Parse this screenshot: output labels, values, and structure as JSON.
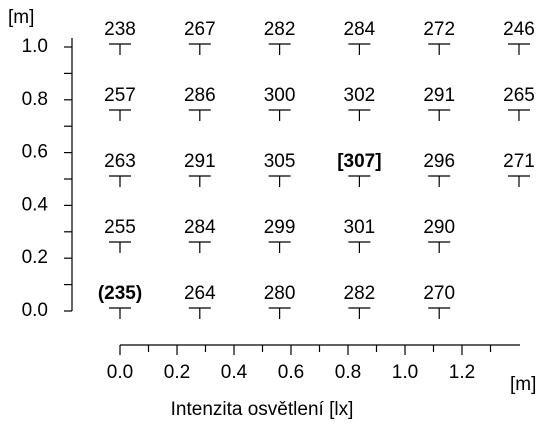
{
  "chart_data": {
    "type": "scatter",
    "y_unit": "[m]",
    "x_unit": "[m]",
    "x_label": "Intenzita osvětlení [lx]",
    "x": [
      0,
      0.28,
      0.56,
      0.84,
      1.12,
      1.4,
      0,
      0.28,
      0.56,
      0.84,
      1.12,
      1.4,
      0,
      0.28,
      0.56,
      0.84,
      1.12,
      1.4,
      0,
      0.28,
      0.56,
      0.84,
      1.12,
      0,
      0.28,
      0.56,
      0.84,
      1.12
    ],
    "y": [
      1,
      1,
      1,
      1,
      1,
      1,
      0.75,
      0.75,
      0.75,
      0.75,
      0.75,
      0.75,
      0.5,
      0.5,
      0.5,
      0.5,
      0.5,
      0.5,
      0.25,
      0.25,
      0.25,
      0.25,
      0.25,
      0,
      0,
      0,
      0,
      0
    ],
    "values": [
      238,
      267,
      282,
      284,
      272,
      246,
      257,
      286,
      300,
      302,
      291,
      265,
      263,
      291,
      305,
      307,
      296,
      271,
      255,
      284,
      299,
      301,
      290,
      235,
      264,
      280,
      282,
      270
    ],
    "value_labels": [
      "238",
      "267",
      "282",
      "284",
      "272",
      "246",
      "257",
      "286",
      "300",
      "302",
      "291",
      "265",
      "263",
      "291",
      "305",
      "[307]",
      "296",
      "271",
      "255",
      "284",
      "299",
      "301",
      "290",
      "(235)",
      "264",
      "280",
      "282",
      "270"
    ],
    "color": "#000000",
    "xlim": [
      0,
      1.4
    ],
    "ylim": [
      0,
      1.04
    ],
    "xticks": [
      {
        "value": 0,
        "label": "0.0"
      },
      0.2,
      0.4,
      0.6,
      0.8,
      {
        "value": 1,
        "label": "1.0"
      },
      1.2
    ],
    "yticks": [
      {
        "value": 0,
        "label": "0.0"
      },
      0.2,
      0.4,
      0.6,
      0.8,
      {
        "value": 1,
        "label": "1.0"
      }
    ],
    "x_minor_ticks": [
      0.1,
      0.3,
      0.5,
      0.7,
      0.9,
      1.1,
      1.3
    ],
    "y_minor_ticks": [
      0.1,
      0.3,
      0.5,
      0.7,
      0.9
    ]
  }
}
